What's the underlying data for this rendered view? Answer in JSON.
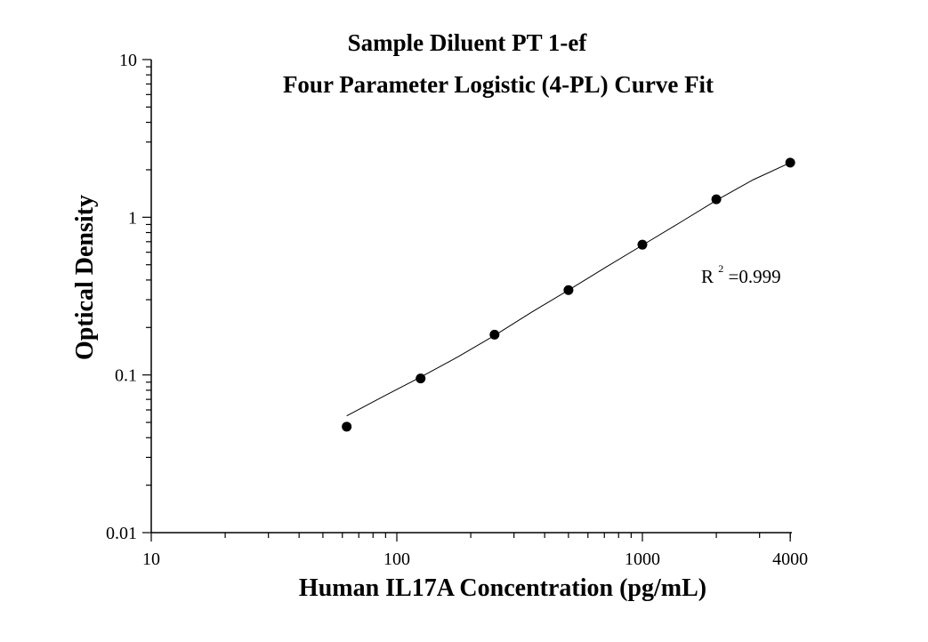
{
  "chart_data": {
    "type": "scatter",
    "title": "Sample Diluent PT 1-ef",
    "subtitle": "Four Parameter Logistic (4-PL) Curve Fit",
    "xlabel": "Human IL17A Concentration (pg/mL)",
    "ylabel": "Optical Density",
    "xscale": "log",
    "yscale": "log",
    "xlim": [
      10,
      4000
    ],
    "ylim": [
      0.01,
      10
    ],
    "x_ticks": [
      {
        "value": 10,
        "label": "10"
      },
      {
        "value": 100,
        "label": "100"
      },
      {
        "value": 1000,
        "label": "1000"
      },
      {
        "value": 4000,
        "label": "4000"
      }
    ],
    "y_ticks": [
      {
        "value": 0.01,
        "label": "0.01"
      },
      {
        "value": 0.1,
        "label": "0.1"
      },
      {
        "value": 1,
        "label": "1"
      },
      {
        "value": 10,
        "label": "10"
      }
    ],
    "grid": false,
    "series": [
      {
        "x": [
          62.5,
          125,
          250,
          500,
          1000,
          2000,
          4000
        ],
        "y": [
          0.047,
          0.095,
          0.18,
          0.345,
          0.67,
          1.3,
          2.22
        ]
      }
    ],
    "fit_curve": {
      "model": "4-PL",
      "x": [
        62.5,
        88,
        125,
        177,
        250,
        354,
        500,
        707,
        1000,
        1414,
        2000,
        2828,
        4000
      ],
      "y": [
        0.055,
        0.073,
        0.097,
        0.13,
        0.178,
        0.25,
        0.345,
        0.48,
        0.665,
        0.92,
        1.28,
        1.73,
        2.22
      ]
    },
    "annotation": {
      "prefix": "R",
      "superscript": "2",
      "suffix": "=0.999"
    },
    "colors": {
      "marker": "#000000",
      "curve": "#000000",
      "axis": "#000000",
      "background": "#ffffff"
    }
  }
}
